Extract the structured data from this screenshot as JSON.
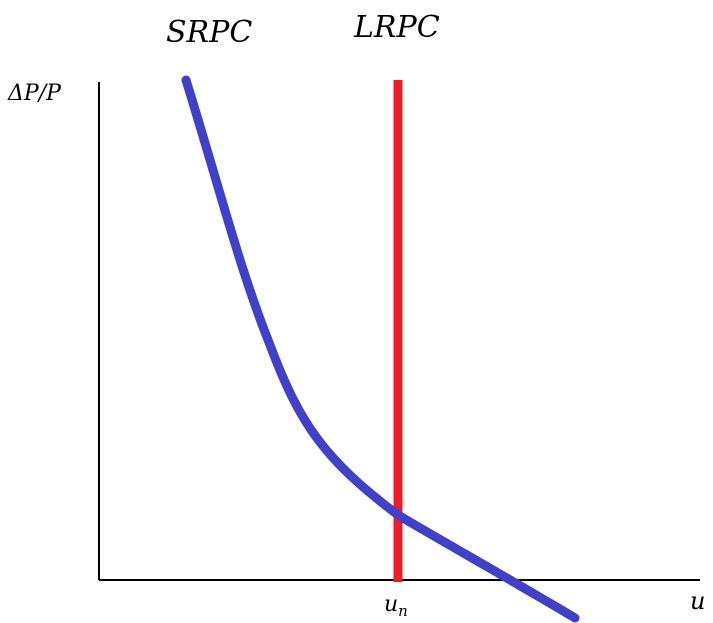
{
  "chart_data": {
    "type": "line",
    "title": "",
    "xlabel": "u",
    "ylabel": "ΔP/P",
    "x_ticks": [
      {
        "label_main": "u",
        "label_sub": "n"
      }
    ],
    "grid": false,
    "legend": "none",
    "series": [
      {
        "name": "SRPC",
        "color": "#4040c8",
        "shape": "downward-sloping convex curve"
      },
      {
        "name": "LRPC",
        "color": "#ee1c25",
        "shape": "vertical line at u_n"
      }
    ],
    "colors": {
      "axis": "#000000",
      "srpc": "#4040c8",
      "lrpc": "#ee1c25"
    }
  }
}
